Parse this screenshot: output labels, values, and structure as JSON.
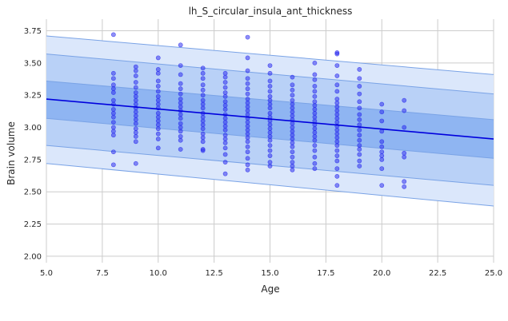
{
  "chart_data": {
    "type": "scatter",
    "title": "lh_S_circular_insula_ant_thickness",
    "xlabel": "Age",
    "ylabel": "Brain volume",
    "xlim": [
      5.0,
      25.0
    ],
    "ylim": [
      1.95,
      3.84
    ],
    "x_ticks": [
      "5.0",
      "7.5",
      "10.0",
      "12.5",
      "15.0",
      "17.5",
      "20.0",
      "22.5",
      "25.0"
    ],
    "x_tick_values": [
      5.0,
      7.5,
      10.0,
      12.5,
      15.0,
      17.5,
      20.0,
      22.5,
      25.0
    ],
    "y_ticks": [
      "2.00",
      "2.25",
      "2.50",
      "2.75",
      "3.00",
      "3.25",
      "3.50",
      "3.75"
    ],
    "y_tick_values": [
      2.0,
      2.25,
      2.5,
      2.75,
      3.0,
      3.25,
      3.5,
      3.75
    ],
    "grid": true,
    "colors": {
      "points": "#2222ee",
      "line": "#0000dd",
      "band_outer": "#dbe7fb",
      "band_mid": "#b9d1f7",
      "band_inner": "#8fb5f2",
      "band_edge": "#7aa3e6"
    },
    "trend_line": {
      "x": [
        5.0,
        25.0
      ],
      "y": [
        3.22,
        2.91
      ]
    },
    "bands": [
      {
        "upper": [
          3.71,
          3.41
        ],
        "lower": [
          2.72,
          2.39
        ]
      },
      {
        "upper": [
          3.57,
          3.26
        ],
        "lower": [
          2.86,
          2.55
        ]
      },
      {
        "upper": [
          3.36,
          3.06
        ],
        "lower": [
          3.07,
          2.76
        ]
      }
    ],
    "points": [
      {
        "x": 8,
        "y": 3.72
      },
      {
        "x": 8,
        "y": 3.42
      },
      {
        "x": 8,
        "y": 3.38
      },
      {
        "x": 8,
        "y": 3.33
      },
      {
        "x": 8,
        "y": 3.3
      },
      {
        "x": 8,
        "y": 3.27
      },
      {
        "x": 8,
        "y": 3.21
      },
      {
        "x": 8,
        "y": 3.18
      },
      {
        "x": 8,
        "y": 3.14
      },
      {
        "x": 8,
        "y": 3.11
      },
      {
        "x": 8,
        "y": 3.08
      },
      {
        "x": 8,
        "y": 3.04
      },
      {
        "x": 8,
        "y": 3.0
      },
      {
        "x": 8,
        "y": 2.97
      },
      {
        "x": 8,
        "y": 2.94
      },
      {
        "x": 8,
        "y": 2.81
      },
      {
        "x": 8,
        "y": 2.71
      },
      {
        "x": 9,
        "y": 3.47
      },
      {
        "x": 9,
        "y": 3.44
      },
      {
        "x": 9,
        "y": 3.4
      },
      {
        "x": 9,
        "y": 3.35
      },
      {
        "x": 9,
        "y": 3.31
      },
      {
        "x": 9,
        "y": 3.27
      },
      {
        "x": 9,
        "y": 3.24
      },
      {
        "x": 9,
        "y": 3.21
      },
      {
        "x": 9,
        "y": 3.18
      },
      {
        "x": 9,
        "y": 3.15
      },
      {
        "x": 9,
        "y": 3.12
      },
      {
        "x": 9,
        "y": 3.09
      },
      {
        "x": 9,
        "y": 3.06
      },
      {
        "x": 9,
        "y": 3.03
      },
      {
        "x": 9,
        "y": 2.99
      },
      {
        "x": 9,
        "y": 2.96
      },
      {
        "x": 9,
        "y": 2.93
      },
      {
        "x": 9,
        "y": 2.89
      },
      {
        "x": 9,
        "y": 2.72
      },
      {
        "x": 10,
        "y": 3.54
      },
      {
        "x": 10,
        "y": 3.45
      },
      {
        "x": 10,
        "y": 3.42
      },
      {
        "x": 10,
        "y": 3.36
      },
      {
        "x": 10,
        "y": 3.32
      },
      {
        "x": 10,
        "y": 3.28
      },
      {
        "x": 10,
        "y": 3.24
      },
      {
        "x": 10,
        "y": 3.21
      },
      {
        "x": 10,
        "y": 3.18
      },
      {
        "x": 10,
        "y": 3.15
      },
      {
        "x": 10,
        "y": 3.11
      },
      {
        "x": 10,
        "y": 3.08
      },
      {
        "x": 10,
        "y": 3.05
      },
      {
        "x": 10,
        "y": 3.02
      },
      {
        "x": 10,
        "y": 2.99
      },
      {
        "x": 10,
        "y": 2.95
      },
      {
        "x": 10,
        "y": 2.91
      },
      {
        "x": 10,
        "y": 2.84
      },
      {
        "x": 11,
        "y": 3.64
      },
      {
        "x": 11,
        "y": 3.48
      },
      {
        "x": 11,
        "y": 3.41
      },
      {
        "x": 11,
        "y": 3.34
      },
      {
        "x": 11,
        "y": 3.3
      },
      {
        "x": 11,
        "y": 3.26
      },
      {
        "x": 11,
        "y": 3.22
      },
      {
        "x": 11,
        "y": 3.19
      },
      {
        "x": 11,
        "y": 3.16
      },
      {
        "x": 11,
        "y": 3.13
      },
      {
        "x": 11,
        "y": 3.1
      },
      {
        "x": 11,
        "y": 3.07
      },
      {
        "x": 11,
        "y": 3.03
      },
      {
        "x": 11,
        "y": 3.0
      },
      {
        "x": 11,
        "y": 2.97
      },
      {
        "x": 11,
        "y": 2.93
      },
      {
        "x": 11,
        "y": 2.9
      },
      {
        "x": 11,
        "y": 2.83
      },
      {
        "x": 12,
        "y": 3.46
      },
      {
        "x": 12,
        "y": 3.42
      },
      {
        "x": 12,
        "y": 3.38
      },
      {
        "x": 12,
        "y": 3.33
      },
      {
        "x": 12,
        "y": 3.29
      },
      {
        "x": 12,
        "y": 3.25
      },
      {
        "x": 12,
        "y": 3.21
      },
      {
        "x": 12,
        "y": 3.18
      },
      {
        "x": 12,
        "y": 3.15
      },
      {
        "x": 12,
        "y": 3.11
      },
      {
        "x": 12,
        "y": 3.08
      },
      {
        "x": 12,
        "y": 3.05
      },
      {
        "x": 12,
        "y": 3.02
      },
      {
        "x": 12,
        "y": 2.99
      },
      {
        "x": 12,
        "y": 2.95
      },
      {
        "x": 12,
        "y": 2.92
      },
      {
        "x": 12,
        "y": 2.89
      },
      {
        "x": 12,
        "y": 2.83
      },
      {
        "x": 12,
        "y": 2.82
      },
      {
        "x": 13,
        "y": 3.42
      },
      {
        "x": 13,
        "y": 3.39
      },
      {
        "x": 13,
        "y": 3.35
      },
      {
        "x": 13,
        "y": 3.31
      },
      {
        "x": 13,
        "y": 3.27
      },
      {
        "x": 13,
        "y": 3.24
      },
      {
        "x": 13,
        "y": 3.2
      },
      {
        "x": 13,
        "y": 3.17
      },
      {
        "x": 13,
        "y": 3.14
      },
      {
        "x": 13,
        "y": 3.1
      },
      {
        "x": 13,
        "y": 3.07
      },
      {
        "x": 13,
        "y": 3.04
      },
      {
        "x": 13,
        "y": 3.01
      },
      {
        "x": 13,
        "y": 2.98
      },
      {
        "x": 13,
        "y": 2.94
      },
      {
        "x": 13,
        "y": 2.91
      },
      {
        "x": 13,
        "y": 2.88
      },
      {
        "x": 13,
        "y": 2.84
      },
      {
        "x": 13,
        "y": 2.79
      },
      {
        "x": 13,
        "y": 2.73
      },
      {
        "x": 13,
        "y": 2.64
      },
      {
        "x": 14,
        "y": 3.7
      },
      {
        "x": 14,
        "y": 3.54
      },
      {
        "x": 14,
        "y": 3.44
      },
      {
        "x": 14,
        "y": 3.38
      },
      {
        "x": 14,
        "y": 3.34
      },
      {
        "x": 14,
        "y": 3.3
      },
      {
        "x": 14,
        "y": 3.26
      },
      {
        "x": 14,
        "y": 3.22
      },
      {
        "x": 14,
        "y": 3.19
      },
      {
        "x": 14,
        "y": 3.16
      },
      {
        "x": 14,
        "y": 3.13
      },
      {
        "x": 14,
        "y": 3.1
      },
      {
        "x": 14,
        "y": 3.07
      },
      {
        "x": 14,
        "y": 3.04
      },
      {
        "x": 14,
        "y": 3.01
      },
      {
        "x": 14,
        "y": 2.98
      },
      {
        "x": 14,
        "y": 2.95
      },
      {
        "x": 14,
        "y": 2.92
      },
      {
        "x": 14,
        "y": 2.89
      },
      {
        "x": 14,
        "y": 2.85
      },
      {
        "x": 14,
        "y": 2.81
      },
      {
        "x": 14,
        "y": 2.76
      },
      {
        "x": 14,
        "y": 2.71
      },
      {
        "x": 14,
        "y": 2.67
      },
      {
        "x": 15,
        "y": 3.48
      },
      {
        "x": 15,
        "y": 3.42
      },
      {
        "x": 15,
        "y": 3.36
      },
      {
        "x": 15,
        "y": 3.32
      },
      {
        "x": 15,
        "y": 3.28
      },
      {
        "x": 15,
        "y": 3.24
      },
      {
        "x": 15,
        "y": 3.21
      },
      {
        "x": 15,
        "y": 3.18
      },
      {
        "x": 15,
        "y": 3.15
      },
      {
        "x": 15,
        "y": 3.11
      },
      {
        "x": 15,
        "y": 3.08
      },
      {
        "x": 15,
        "y": 3.05
      },
      {
        "x": 15,
        "y": 3.02
      },
      {
        "x": 15,
        "y": 2.99
      },
      {
        "x": 15,
        "y": 2.96
      },
      {
        "x": 15,
        "y": 2.93
      },
      {
        "x": 15,
        "y": 2.9
      },
      {
        "x": 15,
        "y": 2.86
      },
      {
        "x": 15,
        "y": 2.82
      },
      {
        "x": 15,
        "y": 2.78
      },
      {
        "x": 15,
        "y": 2.73
      },
      {
        "x": 15,
        "y": 2.7
      },
      {
        "x": 16,
        "y": 3.39
      },
      {
        "x": 16,
        "y": 3.33
      },
      {
        "x": 16,
        "y": 3.29
      },
      {
        "x": 16,
        "y": 3.25
      },
      {
        "x": 16,
        "y": 3.21
      },
      {
        "x": 16,
        "y": 3.18
      },
      {
        "x": 16,
        "y": 3.15
      },
      {
        "x": 16,
        "y": 3.12
      },
      {
        "x": 16,
        "y": 3.09
      },
      {
        "x": 16,
        "y": 3.06
      },
      {
        "x": 16,
        "y": 3.03
      },
      {
        "x": 16,
        "y": 3.0
      },
      {
        "x": 16,
        "y": 2.97
      },
      {
        "x": 16,
        "y": 2.94
      },
      {
        "x": 16,
        "y": 2.91
      },
      {
        "x": 16,
        "y": 2.88
      },
      {
        "x": 16,
        "y": 2.85
      },
      {
        "x": 16,
        "y": 2.81
      },
      {
        "x": 16,
        "y": 2.77
      },
      {
        "x": 16,
        "y": 2.73
      },
      {
        "x": 16,
        "y": 2.7
      },
      {
        "x": 16,
        "y": 2.67
      },
      {
        "x": 17,
        "y": 3.5
      },
      {
        "x": 17,
        "y": 3.41
      },
      {
        "x": 17,
        "y": 3.37
      },
      {
        "x": 17,
        "y": 3.32
      },
      {
        "x": 17,
        "y": 3.28
      },
      {
        "x": 17,
        "y": 3.24
      },
      {
        "x": 17,
        "y": 3.2
      },
      {
        "x": 17,
        "y": 3.17
      },
      {
        "x": 17,
        "y": 3.14
      },
      {
        "x": 17,
        "y": 3.11
      },
      {
        "x": 17,
        "y": 3.08
      },
      {
        "x": 17,
        "y": 3.05
      },
      {
        "x": 17,
        "y": 3.02
      },
      {
        "x": 17,
        "y": 2.99
      },
      {
        "x": 17,
        "y": 2.96
      },
      {
        "x": 17,
        "y": 2.93
      },
      {
        "x": 17,
        "y": 2.9
      },
      {
        "x": 17,
        "y": 2.86
      },
      {
        "x": 17,
        "y": 2.82
      },
      {
        "x": 17,
        "y": 2.77
      },
      {
        "x": 17,
        "y": 2.72
      },
      {
        "x": 17,
        "y": 2.68
      },
      {
        "x": 18,
        "y": 3.58
      },
      {
        "x": 18,
        "y": 3.57
      },
      {
        "x": 18,
        "y": 3.48
      },
      {
        "x": 18,
        "y": 3.4
      },
      {
        "x": 18,
        "y": 3.33
      },
      {
        "x": 18,
        "y": 3.28
      },
      {
        "x": 18,
        "y": 3.22
      },
      {
        "x": 18,
        "y": 3.19
      },
      {
        "x": 18,
        "y": 3.16
      },
      {
        "x": 18,
        "y": 3.13
      },
      {
        "x": 18,
        "y": 3.1
      },
      {
        "x": 18,
        "y": 3.07
      },
      {
        "x": 18,
        "y": 3.04
      },
      {
        "x": 18,
        "y": 3.01
      },
      {
        "x": 18,
        "y": 2.98
      },
      {
        "x": 18,
        "y": 2.95
      },
      {
        "x": 18,
        "y": 2.92
      },
      {
        "x": 18,
        "y": 2.89
      },
      {
        "x": 18,
        "y": 2.86
      },
      {
        "x": 18,
        "y": 2.82
      },
      {
        "x": 18,
        "y": 2.78
      },
      {
        "x": 18,
        "y": 2.74
      },
      {
        "x": 18,
        "y": 2.68
      },
      {
        "x": 18,
        "y": 2.62
      },
      {
        "x": 18,
        "y": 2.55
      },
      {
        "x": 19,
        "y": 3.45
      },
      {
        "x": 19,
        "y": 3.38
      },
      {
        "x": 19,
        "y": 3.32
      },
      {
        "x": 19,
        "y": 3.26
      },
      {
        "x": 19,
        "y": 3.2
      },
      {
        "x": 19,
        "y": 3.15
      },
      {
        "x": 19,
        "y": 3.1
      },
      {
        "x": 19,
        "y": 3.06
      },
      {
        "x": 19,
        "y": 3.02
      },
      {
        "x": 19,
        "y": 2.98
      },
      {
        "x": 19,
        "y": 2.94
      },
      {
        "x": 19,
        "y": 2.9
      },
      {
        "x": 19,
        "y": 2.86
      },
      {
        "x": 19,
        "y": 2.83
      },
      {
        "x": 19,
        "y": 2.79
      },
      {
        "x": 19,
        "y": 2.74
      },
      {
        "x": 19,
        "y": 2.7
      },
      {
        "x": 20,
        "y": 3.18
      },
      {
        "x": 20,
        "y": 3.12
      },
      {
        "x": 20,
        "y": 3.05
      },
      {
        "x": 20,
        "y": 2.97
      },
      {
        "x": 20,
        "y": 2.89
      },
      {
        "x": 20,
        "y": 2.85
      },
      {
        "x": 20,
        "y": 2.81
      },
      {
        "x": 20,
        "y": 2.78
      },
      {
        "x": 20,
        "y": 2.75
      },
      {
        "x": 20,
        "y": 2.68
      },
      {
        "x": 20,
        "y": 2.55
      },
      {
        "x": 21,
        "y": 3.21
      },
      {
        "x": 21,
        "y": 3.13
      },
      {
        "x": 21,
        "y": 3.0
      },
      {
        "x": 21,
        "y": 2.8
      },
      {
        "x": 21,
        "y": 2.77
      },
      {
        "x": 21,
        "y": 2.58
      },
      {
        "x": 21,
        "y": 2.54
      }
    ]
  }
}
